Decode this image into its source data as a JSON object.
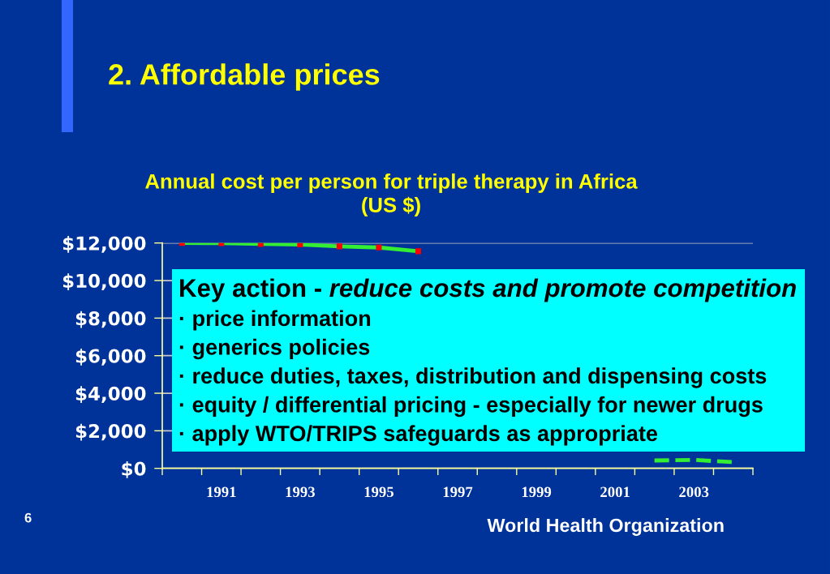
{
  "chart_data": {
    "type": "line",
    "title": "2. Affordable prices",
    "subtitle": "Annual cost per person for triple therapy in Africa\n(US $)",
    "categories": [
      null,
      "1991",
      null,
      "1993",
      null,
      "1995",
      null,
      "1997",
      null,
      "1999",
      null,
      "2001",
      null,
      "2003",
      null
    ],
    "series": [
      {
        "color": "#33ee33",
        "colors": [
          "#ff0000",
          "#ff0000",
          "#ff0000",
          "#ff0000",
          "#ff0000",
          "#ff0000",
          "#ff0000",
          "#ff0000",
          "#ff0000",
          "#ff0000",
          "#ff0000",
          "#ff0000",
          "#ff0000",
          "#ff0000",
          "#ff0000"
        ],
        "marker": "square",
        "line_style": "solid",
        "values": [
          12000,
          11990,
          11950,
          11920,
          11820,
          11760,
          11560,
          null,
          null,
          null,
          null,
          null,
          null,
          null,
          null
        ]
      },
      {
        "color": "#33ee33",
        "marker": "none",
        "line_style": "dashed",
        "values": [
          null,
          null,
          null,
          null,
          null,
          null,
          null,
          null,
          null,
          null,
          null,
          null,
          420,
          450,
          330
        ]
      }
    ],
    "ylim": [
      0,
      12000
    ],
    "yticks": [
      {
        "value": 0,
        "label": "$0"
      },
      {
        "value": 2000,
        "label": "$2,000"
      },
      {
        "value": 4000,
        "label": "$4,000"
      },
      {
        "value": 6000,
        "label": "$6,000"
      },
      {
        "value": 8000,
        "label": "$8,000"
      },
      {
        "value": 10000,
        "label": "$10,000"
      },
      {
        "value": 12000,
        "label": "$12,000"
      }
    ],
    "grid": "y",
    "annotations": [
      "Key action - ",
      "reduce costs and promote competition",
      "· price information",
      "· generics policies",
      "· reduce duties, taxes, distribution and dispensing costs",
      "· equity / differential pricing - especially for newer drugs",
      "· apply WTO/TRIPS safeguards as appropriate",
      "6",
      "World Health Organization"
    ]
  }
}
